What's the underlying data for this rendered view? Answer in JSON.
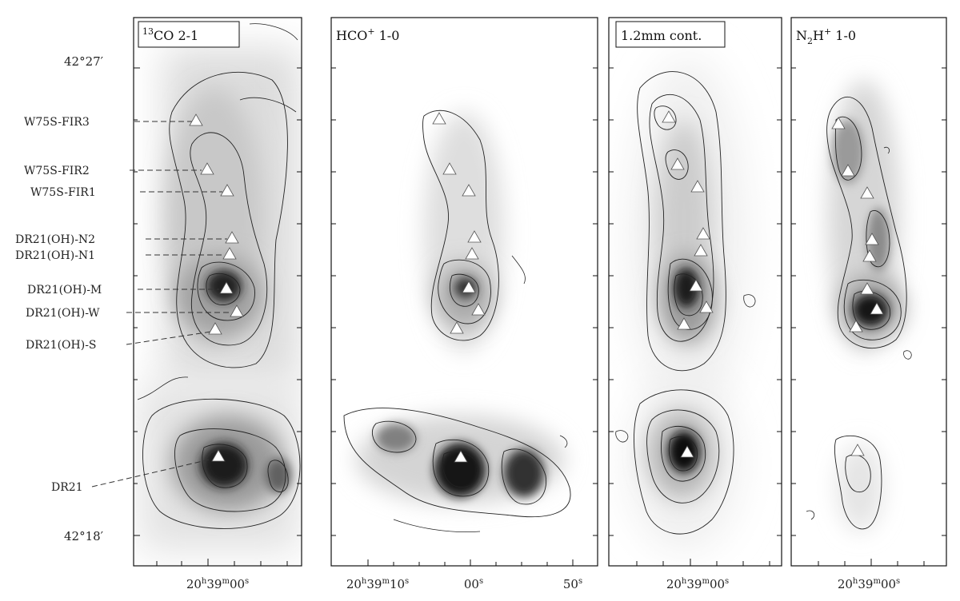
{
  "chart_data": {
    "type": "heatmap",
    "dec_labels": [
      "42°27′",
      "42°18′"
    ],
    "sources": [
      {
        "name": "W75S-FIR3"
      },
      {
        "name": "W75S-FIR2"
      },
      {
        "name": "W75S-FIR1"
      },
      {
        "name": "DR21(OH)-N2"
      },
      {
        "name": "DR21(OH)-N1"
      },
      {
        "name": "DR21(OH)-M"
      },
      {
        "name": "DR21(OH)-W"
      },
      {
        "name": "DR21(OH)-S"
      },
      {
        "name": "DR21"
      }
    ],
    "panels": [
      {
        "title": "13CO 2-1",
        "title_sup": "13",
        "title_main": "CO 2-1",
        "boxed": true,
        "ra_labels": [
          "20h39m00s"
        ]
      },
      {
        "title": "HCO+ 1-0",
        "title_main": "HCO",
        "title_sup": "+",
        "title_rest": " 1-0",
        "boxed": false,
        "ra_labels": [
          "20h39m10s",
          "00s",
          "50s"
        ]
      },
      {
        "title": "1.2mm cont.",
        "title_main": "1.2mm cont.",
        "boxed": true,
        "ra_labels": [
          "20h39m00s"
        ]
      },
      {
        "title": "N2H+ 1-0",
        "title_main": "N",
        "title_sub": "2",
        "title_mid": "H",
        "title_sup": "+",
        "title_rest": " 1-0",
        "boxed": false,
        "ra_labels": [
          "20h39m00s"
        ]
      }
    ],
    "colormap": "grayscale",
    "marker": "white-triangle"
  }
}
